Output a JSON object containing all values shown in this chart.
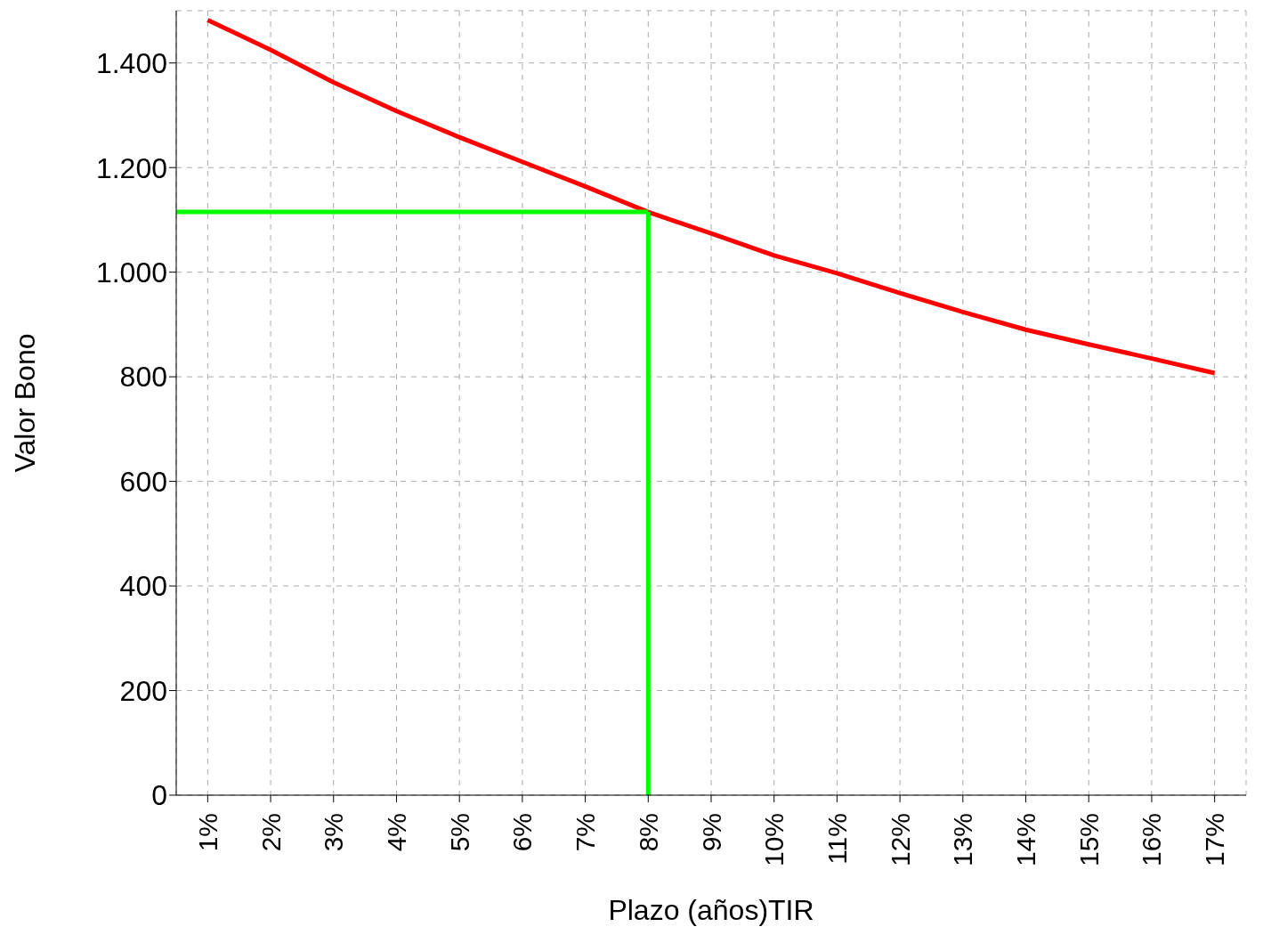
{
  "chart_data": {
    "type": "line",
    "xlabel": "Plazo (años)TIR",
    "ylabel": "Valor Bono",
    "categories": [
      "1%",
      "2%",
      "3%",
      "4%",
      "5%",
      "6%",
      "7%",
      "8%",
      "9%",
      "10%",
      "11%",
      "12%",
      "13%",
      "14%",
      "15%",
      "16%",
      "17%"
    ],
    "series": [
      {
        "color": "#ff0000",
        "values": [
          1482,
          1425,
          1363,
          1308,
          1258,
          1211,
          1164,
          1115,
          1074,
          1032,
          998,
          960,
          924,
          890,
          862,
          835,
          807
        ]
      }
    ],
    "ylim": [
      0,
      1500
    ],
    "yticks": [
      0,
      200,
      400,
      600,
      800,
      {
        "value": 1000,
        "label": "1.000"
      },
      {
        "value": 1200,
        "label": "1.200"
      },
      {
        "value": 1400,
        "label": "1.400"
      }
    ],
    "ref_lines": [
      {
        "axis": "y",
        "value": 1115,
        "color": "#00ff00"
      },
      {
        "axis": "x",
        "value": "8%",
        "color": "#00ff00"
      }
    ],
    "grid": true,
    "marker": "none",
    "line_style": "solid"
  }
}
